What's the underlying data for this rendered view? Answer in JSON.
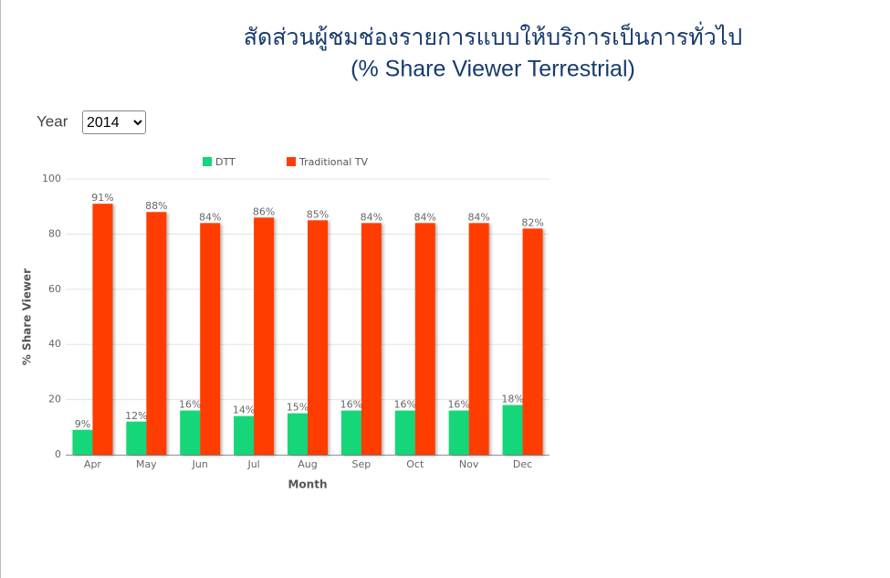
{
  "page": {
    "title": "สัดส่วนผู้ชมช่องรายการแบบให้บริการเป็นการทั่วไป",
    "subtitle": "(% Share Viewer Terrestrial)",
    "year_label": "Year",
    "year_value": "2014"
  },
  "chart_data": {
    "type": "bar",
    "x_label": "Month",
    "y_label": "% Share Viewer",
    "categories": [
      "Apr",
      "May",
      "Jun",
      "Jul",
      "Aug",
      "Sep",
      "Oct",
      "Nov",
      "Dec"
    ],
    "series": [
      {
        "name": "DTT",
        "color": "#12d67a",
        "values": [
          9,
          12,
          16,
          14,
          15,
          16,
          16,
          16,
          18
        ],
        "value_labels": [
          "9%",
          "12%",
          "16%",
          "14%",
          "15%",
          "16%",
          "16%",
          "16%",
          "18%"
        ]
      },
      {
        "name": "Traditional TV",
        "color": "#ff3c00",
        "values": [
          91,
          88,
          84,
          86,
          85,
          84,
          84,
          84,
          82
        ],
        "value_labels": [
          "91%",
          "88%",
          "84%",
          "86%",
          "85%",
          "84%",
          "84%",
          "84%",
          "82%"
        ]
      }
    ],
    "ylim": [
      0,
      100
    ],
    "yticks": [
      0,
      20,
      40,
      60,
      80,
      100
    ],
    "grid": true,
    "legend": "top"
  }
}
